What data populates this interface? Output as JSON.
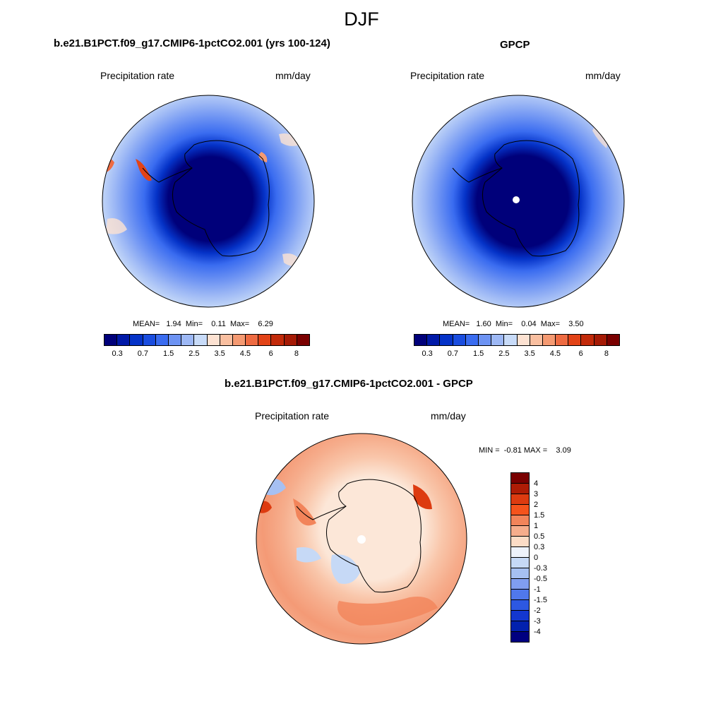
{
  "figure": {
    "title": "DJF"
  },
  "panels": {
    "model": {
      "title": "b.e21.B1PCT.f09_g17.CMIP6-1pctCO2.001 (yrs 100-124)",
      "variable": "Precipitation rate",
      "units": "mm/day",
      "stats": "MEAN=   1.94  Min=    0.11  Max=    6.29"
    },
    "obs": {
      "title": "GPCP",
      "variable": "Precipitation rate",
      "units": "mm/day",
      "stats": "MEAN=   1.60  Min=    0.04  Max=    3.50"
    },
    "diff": {
      "title": "b.e21.B1PCT.f09_g17.CMIP6-1pctCO2.001 - GPCP",
      "variable": "Precipitation rate",
      "units": "mm/day",
      "stats": "MIN =  -0.81 MAX =    3.09"
    }
  },
  "colorbar_abs": {
    "colors": [
      "#00007a",
      "#0019a8",
      "#0533c8",
      "#1a4ddf",
      "#3a6cf0",
      "#6d93f3",
      "#9db8f5",
      "#c8dbf8",
      "#fde2d2",
      "#f9bfa0",
      "#f59a72",
      "#ee6b42",
      "#e24317",
      "#c22a0a",
      "#a51a05",
      "#7a0000"
    ],
    "ticks": [
      "0.3",
      "0.7",
      "1.5",
      "2.5",
      "3.5",
      "4.5",
      "6",
      "8"
    ]
  },
  "colorbar_diff": {
    "colors": [
      "#7a0000",
      "#ae1c05",
      "#dd3b10",
      "#f5531c",
      "#f2845a",
      "#f6ad8c",
      "#fcdcc6",
      "#eef2fa",
      "#c6d9f6",
      "#a6c0f2",
      "#809ef0",
      "#5078ec",
      "#2d58e2",
      "#1337cf",
      "#0221ae",
      "#000080"
    ],
    "ticks": [
      "4",
      "3",
      "2",
      "1.5",
      "1",
      "0.5",
      "0.3",
      "0",
      "-0.3",
      "-0.5",
      "-1",
      "-1.5",
      "-2",
      "-3",
      "-4"
    ]
  }
}
